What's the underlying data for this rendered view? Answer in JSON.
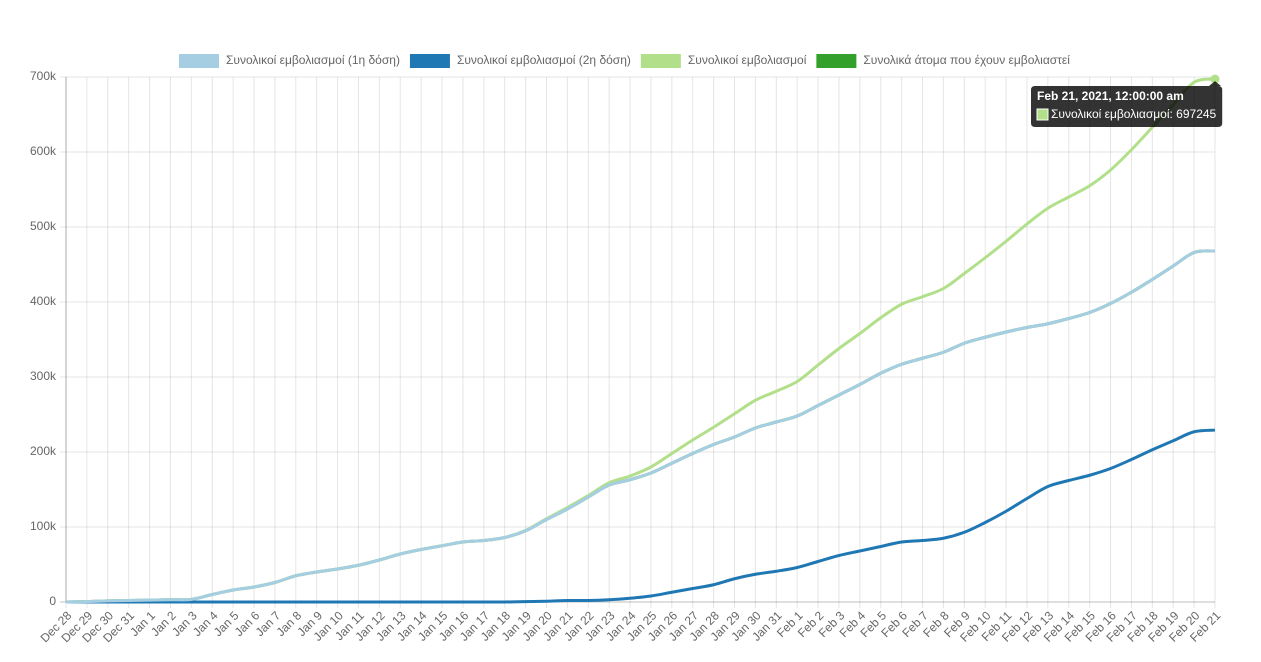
{
  "chart_data": {
    "type": "line",
    "categories": [
      "Dec 28",
      "Dec 29",
      "Dec 30",
      "Dec 31",
      "Jan 1",
      "Jan 2",
      "Jan 3",
      "Jan 4",
      "Jan 5",
      "Jan 6",
      "Jan 7",
      "Jan 8",
      "Jan 9",
      "Jan 10",
      "Jan 11",
      "Jan 12",
      "Jan 13",
      "Jan 14",
      "Jan 15",
      "Jan 16",
      "Jan 17",
      "Jan 18",
      "Jan 19",
      "Jan 20",
      "Jan 21",
      "Jan 22",
      "Jan 23",
      "Jan 24",
      "Jan 25",
      "Jan 26",
      "Jan 27",
      "Jan 28",
      "Jan 29",
      "Jan 30",
      "Jan 31",
      "Feb 1",
      "Feb 2",
      "Feb 3",
      "Feb 4",
      "Feb 5",
      "Feb 6",
      "Feb 7",
      "Feb 8",
      "Feb 9",
      "Feb 10",
      "Feb 11",
      "Feb 12",
      "Feb 13",
      "Feb 14",
      "Feb 15",
      "Feb 16",
      "Feb 17",
      "Feb 18",
      "Feb 19",
      "Feb 20",
      "Feb 21"
    ],
    "series": [
      {
        "name": "Συνολικοί εμβολιασμοί (1η δόση)",
        "color": "#a6cee3",
        "values": [
          0,
          500,
          1500,
          2000,
          2500,
          3000,
          3500,
          10000,
          16000,
          20000,
          26000,
          35000,
          40000,
          44000,
          49000,
          56000,
          64000,
          70000,
          75000,
          80000,
          82000,
          86000,
          95000,
          110000,
          124000,
          140000,
          156000,
          163000,
          172000,
          185000,
          198000,
          210000,
          220000,
          232000,
          240000,
          248000,
          262000,
          276000,
          290000,
          305000,
          317000,
          325000,
          333000,
          345000,
          353000,
          360000,
          366000,
          371000,
          378000,
          386000,
          398000,
          413000,
          430000,
          448000,
          466000,
          468000
        ]
      },
      {
        "name": "Συνολικοί εμβολιασμοί (2η δόση)",
        "color": "#1f78b4",
        "values": [
          0,
          0,
          0,
          0,
          0,
          0,
          0,
          0,
          0,
          0,
          0,
          0,
          0,
          0,
          0,
          0,
          0,
          0,
          0,
          0,
          0,
          0,
          500,
          1000,
          2000,
          2000,
          3000,
          5000,
          8000,
          13000,
          18000,
          23000,
          31000,
          37000,
          41000,
          46000,
          54000,
          62000,
          68000,
          74000,
          80000,
          82000,
          85000,
          93000,
          106000,
          121000,
          138000,
          154000,
          162000,
          169000,
          178000,
          190000,
          203000,
          215000,
          227000,
          229245
        ]
      },
      {
        "name": "Συνολικοί εμβολιασμοί",
        "color": "#b2df8a",
        "values": [
          0,
          500,
          1500,
          2000,
          2500,
          3000,
          3500,
          10000,
          16000,
          20000,
          26000,
          35000,
          40000,
          44000,
          49000,
          56000,
          64000,
          70000,
          75000,
          80000,
          82000,
          86000,
          95500,
          111000,
          126000,
          142000,
          159000,
          168000,
          180000,
          198000,
          216000,
          233000,
          251000,
          269000,
          281000,
          294000,
          316000,
          338000,
          358000,
          379000,
          397000,
          407000,
          418000,
          438000,
          459000,
          481000,
          504000,
          525000,
          540000,
          555000,
          576000,
          603000,
          633000,
          663000,
          693000,
          697245
        ]
      },
      {
        "name": "Συνολικά άτομα που έχουν εμβολιαστεί",
        "color": "#33a02c",
        "values": [
          0,
          500,
          1500,
          2000,
          2500,
          3000,
          3500,
          10000,
          16000,
          20000,
          26000,
          35000,
          40000,
          44000,
          49000,
          56000,
          64000,
          70000,
          75000,
          80000,
          82000,
          86000,
          95000,
          110000,
          124000,
          140000,
          156000,
          163000,
          172000,
          185000,
          198000,
          210000,
          220000,
          232000,
          240000,
          248000,
          262000,
          276000,
          290000,
          305000,
          317000,
          325000,
          333000,
          345000,
          353000,
          360000,
          366000,
          371000,
          378000,
          386000,
          398000,
          413000,
          430000,
          448000,
          466000,
          468000
        ]
      }
    ],
    "ylim": [
      0,
      700000
    ],
    "yticks": [
      {
        "value": 0,
        "label": "0"
      },
      {
        "value": 100000,
        "label": "100k"
      },
      {
        "value": 200000,
        "label": "200k"
      },
      {
        "value": 300000,
        "label": "300k"
      },
      {
        "value": 400000,
        "label": "400k"
      },
      {
        "value": 500000,
        "label": "500k"
      },
      {
        "value": 600000,
        "label": "600k"
      },
      {
        "value": 700000,
        "label": "700k"
      }
    ],
    "grid": true,
    "legend": "top",
    "tooltip": {
      "title": "Feb 21, 2021, 12:00:00 am"
    }
  }
}
